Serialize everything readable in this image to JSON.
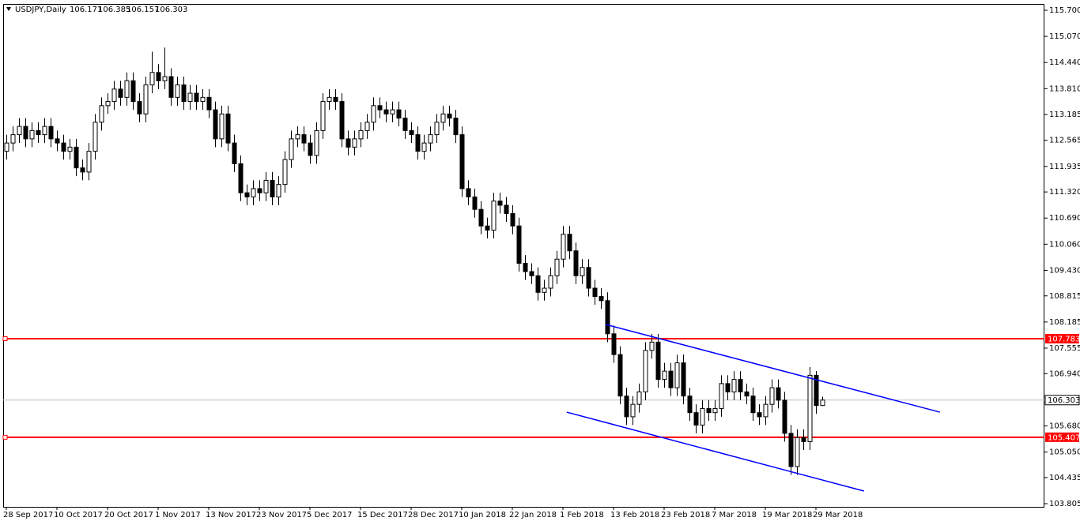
{
  "chart_data": {
    "type": "candlestick",
    "symbol": "USDJPY,Daily",
    "categories": [
      "28 Sep 2017",
      null,
      null,
      null,
      null,
      null,
      null,
      null,
      "10 Oct 2017",
      null,
      null,
      null,
      null,
      null,
      null,
      null,
      "20 Oct 2017",
      null,
      null,
      null,
      null,
      null,
      null,
      null,
      "1 Nov 2017",
      null,
      null,
      null,
      null,
      null,
      null,
      null,
      "13 Nov 2017",
      null,
      null,
      null,
      null,
      null,
      null,
      null,
      "23 Nov 2017",
      null,
      null,
      null,
      null,
      null,
      null,
      null,
      "5 Dec 2017",
      null,
      null,
      null,
      null,
      null,
      null,
      null,
      "15 Dec 2017",
      null,
      null,
      null,
      null,
      null,
      null,
      null,
      "28 Dec 2017",
      null,
      null,
      null,
      null,
      null,
      null,
      null,
      "10 Jan 2018",
      null,
      null,
      null,
      null,
      null,
      null,
      null,
      "22 Jan 2018",
      null,
      null,
      null,
      null,
      null,
      null,
      null,
      "1 Feb 2018",
      null,
      null,
      null,
      null,
      null,
      null,
      null,
      "13 Feb 2018",
      null,
      null,
      null,
      null,
      null,
      null,
      null,
      "23 Feb 2018",
      null,
      null,
      null,
      null,
      null,
      null,
      null,
      "7 Mar 2018",
      null,
      null,
      null,
      null,
      null,
      null,
      null,
      "19 Mar 2018",
      null,
      null,
      null,
      null,
      null,
      null,
      null,
      "29 Mar 2018",
      null
    ],
    "candles": [
      [
        112.3,
        112.7,
        112.1,
        112.5
      ],
      [
        112.5,
        112.9,
        112.3,
        112.7
      ],
      [
        112.7,
        113.1,
        112.5,
        112.9
      ],
      [
        112.9,
        113.1,
        112.4,
        112.6
      ],
      [
        112.6,
        113.0,
        112.4,
        112.8
      ],
      [
        112.8,
        113.0,
        112.5,
        112.7
      ],
      [
        112.7,
        113.1,
        112.5,
        112.9
      ],
      [
        112.9,
        113.1,
        112.4,
        112.6
      ],
      [
        112.6,
        112.8,
        112.3,
        112.5
      ],
      [
        112.5,
        112.7,
        112.1,
        112.3
      ],
      [
        112.3,
        112.6,
        112.1,
        112.4
      ],
      [
        112.4,
        112.6,
        111.7,
        111.9
      ],
      [
        111.9,
        112.1,
        111.6,
        111.8
      ],
      [
        111.8,
        112.5,
        111.6,
        112.3
      ],
      [
        112.3,
        113.2,
        112.1,
        113.0
      ],
      [
        113.0,
        113.6,
        112.8,
        113.4
      ],
      [
        113.4,
        113.7,
        113.2,
        113.5
      ],
      [
        113.5,
        114.0,
        113.3,
        113.8
      ],
      [
        113.8,
        114.0,
        113.4,
        113.6
      ],
      [
        113.6,
        114.2,
        113.4,
        114.0
      ],
      [
        114.0,
        114.2,
        113.3,
        113.5
      ],
      [
        113.5,
        113.7,
        113.0,
        113.2
      ],
      [
        113.2,
        114.1,
        113.0,
        113.9
      ],
      [
        113.9,
        114.7,
        113.7,
        114.2
      ],
      [
        114.2,
        114.4,
        113.8,
        114.0
      ],
      [
        114.0,
        114.8,
        113.8,
        114.1
      ],
      [
        114.1,
        114.3,
        113.4,
        113.6
      ],
      [
        113.6,
        114.1,
        113.4,
        113.9
      ],
      [
        113.9,
        114.1,
        113.3,
        113.5
      ],
      [
        113.5,
        113.9,
        113.3,
        113.7
      ],
      [
        113.7,
        113.9,
        113.3,
        113.5
      ],
      [
        113.5,
        113.8,
        113.3,
        113.6
      ],
      [
        113.6,
        113.8,
        113.1,
        113.3
      ],
      [
        113.3,
        113.5,
        112.4,
        112.6
      ],
      [
        112.6,
        113.4,
        112.4,
        113.2
      ],
      [
        113.2,
        113.4,
        112.3,
        112.5
      ],
      [
        112.5,
        112.7,
        111.8,
        112.0
      ],
      [
        112.0,
        112.2,
        111.1,
        111.3
      ],
      [
        111.3,
        111.5,
        111.0,
        111.2
      ],
      [
        111.2,
        111.6,
        111.0,
        111.4
      ],
      [
        111.4,
        111.6,
        111.1,
        111.3
      ],
      [
        111.3,
        111.8,
        111.1,
        111.6
      ],
      [
        111.6,
        111.8,
        111.0,
        111.2
      ],
      [
        111.2,
        111.7,
        111.0,
        111.5
      ],
      [
        111.5,
        112.3,
        111.3,
        112.1
      ],
      [
        112.1,
        112.8,
        111.9,
        112.6
      ],
      [
        112.6,
        112.9,
        112.4,
        112.7
      ],
      [
        112.7,
        112.9,
        112.3,
        112.5
      ],
      [
        112.5,
        112.7,
        112.0,
        112.2
      ],
      [
        112.2,
        113.0,
        112.0,
        112.8
      ],
      [
        112.8,
        113.7,
        112.6,
        113.5
      ],
      [
        113.5,
        113.8,
        113.3,
        113.6
      ],
      [
        113.6,
        113.8,
        113.3,
        113.5
      ],
      [
        113.5,
        113.7,
        112.4,
        112.6
      ],
      [
        112.6,
        112.8,
        112.2,
        112.4
      ],
      [
        112.4,
        112.8,
        112.2,
        112.6
      ],
      [
        112.6,
        113.0,
        112.4,
        112.8
      ],
      [
        112.8,
        113.2,
        112.6,
        113.0
      ],
      [
        113.0,
        113.6,
        112.8,
        113.4
      ],
      [
        113.4,
        113.6,
        113.1,
        113.3
      ],
      [
        113.3,
        113.5,
        113.0,
        113.2
      ],
      [
        113.2,
        113.5,
        113.0,
        113.3
      ],
      [
        113.3,
        113.5,
        112.9,
        113.1
      ],
      [
        113.1,
        113.3,
        112.6,
        112.8
      ],
      [
        112.8,
        113.0,
        112.5,
        112.7
      ],
      [
        112.7,
        112.9,
        112.1,
        112.3
      ],
      [
        112.3,
        112.7,
        112.1,
        112.5
      ],
      [
        112.5,
        112.9,
        112.3,
        112.7
      ],
      [
        112.7,
        113.2,
        112.5,
        113.0
      ],
      [
        113.0,
        113.4,
        112.8,
        113.2
      ],
      [
        113.2,
        113.4,
        112.9,
        113.1
      ],
      [
        113.1,
        113.3,
        112.5,
        112.7
      ],
      [
        112.7,
        112.9,
        111.2,
        111.4
      ],
      [
        111.4,
        111.6,
        111.0,
        111.2
      ],
      [
        111.2,
        111.4,
        110.7,
        110.9
      ],
      [
        110.9,
        111.1,
        110.3,
        110.5
      ],
      [
        110.5,
        110.7,
        110.2,
        110.4
      ],
      [
        110.4,
        111.3,
        110.2,
        111.1
      ],
      [
        111.1,
        111.3,
        110.8,
        111.0
      ],
      [
        111.0,
        111.2,
        110.6,
        110.8
      ],
      [
        110.8,
        111.0,
        110.3,
        110.5
      ],
      [
        110.5,
        110.7,
        109.4,
        109.6
      ],
      [
        109.6,
        109.8,
        109.2,
        109.4
      ],
      [
        109.4,
        109.6,
        109.1,
        109.3
      ],
      [
        109.3,
        109.5,
        108.7,
        108.9
      ],
      [
        108.9,
        109.2,
        108.7,
        109.0
      ],
      [
        109.0,
        109.5,
        108.8,
        109.3
      ],
      [
        109.3,
        109.9,
        109.1,
        109.7
      ],
      [
        109.7,
        110.5,
        109.5,
        110.3
      ],
      [
        110.3,
        110.5,
        109.7,
        109.9
      ],
      [
        109.9,
        110.1,
        109.1,
        109.3
      ],
      [
        109.3,
        109.7,
        109.1,
        109.5
      ],
      [
        109.5,
        109.7,
        108.8,
        109.0
      ],
      [
        109.0,
        109.2,
        108.6,
        108.8
      ],
      [
        108.8,
        109.0,
        108.5,
        108.7
      ],
      [
        108.7,
        108.9,
        107.7,
        107.9
      ],
      [
        107.9,
        108.1,
        107.2,
        107.4
      ],
      [
        107.4,
        107.6,
        106.2,
        106.4
      ],
      [
        106.4,
        106.6,
        105.7,
        105.9
      ],
      [
        105.9,
        106.4,
        105.7,
        106.2
      ],
      [
        106.2,
        106.7,
        106.0,
        106.5
      ],
      [
        106.5,
        107.7,
        106.3,
        107.5
      ],
      [
        107.5,
        107.9,
        107.3,
        107.7
      ],
      [
        107.7,
        107.9,
        106.6,
        106.8
      ],
      [
        106.8,
        107.2,
        106.6,
        107.0
      ],
      [
        107.0,
        107.2,
        106.4,
        106.6
      ],
      [
        106.6,
        107.4,
        106.4,
        107.2
      ],
      [
        107.2,
        107.4,
        106.2,
        106.4
      ],
      [
        106.4,
        106.6,
        105.8,
        106.0
      ],
      [
        106.0,
        106.2,
        105.5,
        105.7
      ],
      [
        105.7,
        106.3,
        105.5,
        106.1
      ],
      [
        106.1,
        106.3,
        105.8,
        106.0
      ],
      [
        106.0,
        106.3,
        105.8,
        106.1
      ],
      [
        106.1,
        106.9,
        105.9,
        106.7
      ],
      [
        106.7,
        106.9,
        106.3,
        106.5
      ],
      [
        106.5,
        107.0,
        106.3,
        106.8
      ],
      [
        106.8,
        107.0,
        106.3,
        106.5
      ],
      [
        106.5,
        106.7,
        106.2,
        106.4
      ],
      [
        106.4,
        106.6,
        105.8,
        106.0
      ],
      [
        106.0,
        106.2,
        105.7,
        105.9
      ],
      [
        105.9,
        106.4,
        105.7,
        106.2
      ],
      [
        106.2,
        106.8,
        106.0,
        106.6
      ],
      [
        106.6,
        106.8,
        106.1,
        106.3
      ],
      [
        106.3,
        106.5,
        105.3,
        105.5
      ],
      [
        105.5,
        105.7,
        104.5,
        104.7
      ],
      [
        104.7,
        105.6,
        104.5,
        105.4
      ],
      [
        105.4,
        105.6,
        105.1,
        105.3
      ],
      [
        105.3,
        107.1,
        105.1,
        106.9
      ],
      [
        106.9,
        107.0,
        105.97,
        106.171
      ],
      [
        106.171,
        106.385,
        106.157,
        106.303
      ]
    ],
    "ylim": [
      103.729,
      115.852
    ],
    "yticks": [
      {
        "value": 115.7,
        "label": "115.700"
      },
      {
        "value": 115.07,
        "label": "115.070"
      },
      {
        "value": 114.44,
        "label": "114.440"
      },
      {
        "value": 113.81,
        "label": "113.810"
      },
      {
        "value": 113.185,
        "label": "113.185"
      },
      {
        "value": 112.565,
        "label": "112.565"
      },
      {
        "value": 111.935,
        "label": "111.935"
      },
      {
        "value": 111.32,
        "label": "111.320"
      },
      {
        "value": 110.69,
        "label": "110.690"
      },
      {
        "value": 110.06,
        "label": "110.060"
      },
      {
        "value": 109.43,
        "label": "109.430"
      },
      {
        "value": 108.815,
        "label": "108.815"
      },
      {
        "value": 108.185,
        "label": "108.185"
      },
      {
        "value": 107.555,
        "label": "107.555"
      },
      {
        "value": 106.94,
        "label": "106.940"
      },
      {
        "value": 105.68,
        "label": "105.680"
      },
      {
        "value": 105.05,
        "label": "105.050"
      },
      {
        "value": 104.435,
        "label": "104.435"
      },
      {
        "value": 103.805,
        "label": "103.805"
      }
    ],
    "levels": [
      {
        "value": 107.783,
        "color": "#ff0000"
      },
      {
        "value": 105.407,
        "color": "#ff0000"
      }
    ],
    "trendlines": [
      {
        "x": [
          94.75,
          147.6
        ],
        "y": [
          108.125,
          106.012
        ],
        "color": "#0000ff"
      },
      {
        "x": [
          88.6,
          135.6
        ],
        "y": [
          106.012,
          104.109
        ],
        "color": "#0000ff"
      }
    ]
  }
}
